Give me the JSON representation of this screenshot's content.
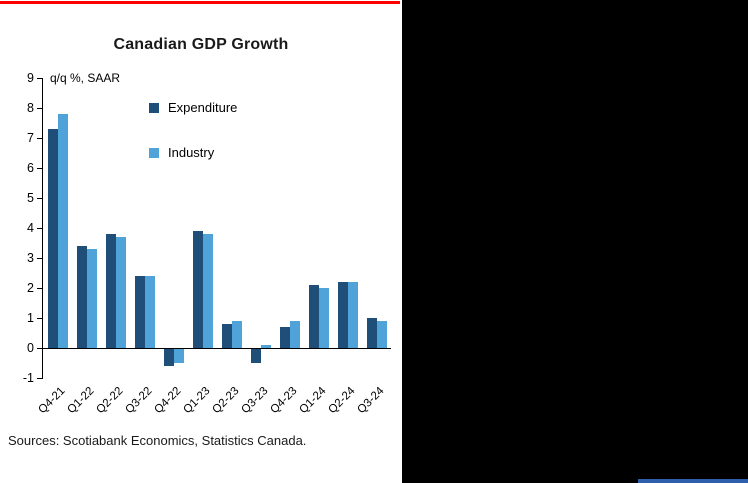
{
  "page": {
    "sources": "Sources: Scotiabank Economics, Statistics Canada.",
    "colors": {
      "top_rule": "#FF0000",
      "bottom_rule": "#2E5FAC",
      "side_panel": "#000000"
    }
  },
  "chart_data": {
    "type": "bar",
    "title": "Canadian GDP Growth",
    "axis_note": "q/q %, SAAR",
    "categories": [
      "Q4-21",
      "Q1-22",
      "Q2-22",
      "Q3-22",
      "Q4-22",
      "Q1-23",
      "Q2-23",
      "Q3-23",
      "Q4-23",
      "Q1-24",
      "Q2-24",
      "Q3-24"
    ],
    "series": [
      {
        "name": "Expenditure",
        "color": "#1F4E79",
        "values": [
          7.3,
          3.4,
          3.8,
          2.4,
          -0.6,
          3.9,
          0.8,
          -0.5,
          0.7,
          2.1,
          2.2,
          1.0
        ]
      },
      {
        "name": "Industry",
        "color": "#4FA3D8",
        "values": [
          7.8,
          3.3,
          3.7,
          2.4,
          -0.5,
          3.8,
          0.9,
          0.1,
          0.9,
          2.0,
          2.2,
          0.9
        ]
      }
    ],
    "ylim": [
      -1,
      9
    ],
    "ytick_step": 1,
    "xlabel": "",
    "ylabel": "",
    "grid": false,
    "legend_position": "top-center-inside"
  }
}
